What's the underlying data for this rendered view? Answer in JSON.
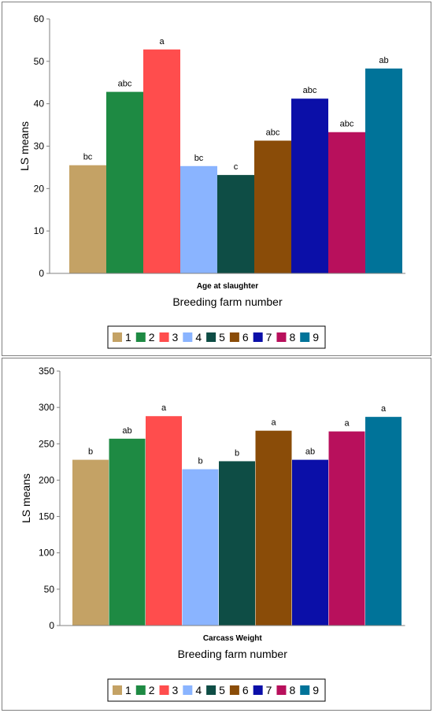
{
  "colors": {
    "axis": "#808080",
    "bars": [
      "#C4A265",
      "#1E8A43",
      "#FF4D4D",
      "#8AB4FF",
      "#0E4D45",
      "#8A4C08",
      "#0B0FA8",
      "#B8105C",
      "#007399"
    ]
  },
  "legend": [
    "1",
    "2",
    "3",
    "4",
    "5",
    "6",
    "7",
    "8",
    "9"
  ],
  "chart_data": [
    {
      "type": "bar",
      "subtitle": "Age at slaughter",
      "xlabel": "Breeding farm number",
      "ylabel": "LS means",
      "ylim": [
        0,
        60
      ],
      "yticks": [
        0,
        10,
        20,
        30,
        40,
        50,
        60
      ],
      "categories": [
        "1",
        "2",
        "3",
        "4",
        "5",
        "6",
        "7",
        "8",
        "9"
      ],
      "values": [
        25.5,
        42.8,
        52.8,
        25.3,
        23.2,
        31.3,
        41.2,
        33.3,
        48.3
      ],
      "labels": [
        "bc",
        "abc",
        "a",
        "bc",
        "c",
        "abc",
        "abc",
        "abc",
        "ab"
      ],
      "grid": false,
      "legend_position": "bottom"
    },
    {
      "type": "bar",
      "subtitle": "Carcass Weight",
      "xlabel": "Breeding farm number",
      "ylabel": "LS means",
      "ylim": [
        0,
        350
      ],
      "yticks": [
        0,
        50,
        100,
        150,
        200,
        250,
        300,
        350
      ],
      "categories": [
        "1",
        "2",
        "3",
        "4",
        "5",
        "6",
        "7",
        "8",
        "9"
      ],
      "values": [
        228,
        257,
        288,
        215,
        226,
        268,
        228,
        267,
        287
      ],
      "labels": [
        "b",
        "ab",
        "a",
        "b",
        "b",
        "a",
        "ab",
        "a",
        "a"
      ],
      "grid": false,
      "legend_position": "bottom"
    }
  ]
}
